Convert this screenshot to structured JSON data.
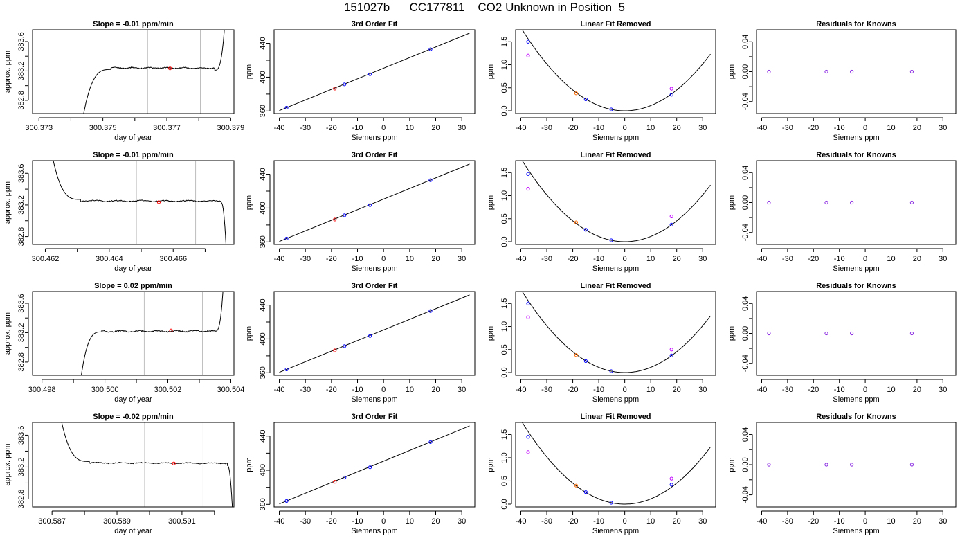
{
  "figure": {
    "title": "151027b      CC177811    CO2 Unknown in Position  5"
  },
  "colors": {
    "curve": "#000000",
    "axis": "#000000",
    "vline": "#bebebe",
    "known_point": "#0000ff",
    "unknown_point": "#ff0000",
    "magenta_point": "#c000ff",
    "orange_point": "#ff6a00",
    "residual_point": "#8a2be2"
  },
  "chart_data": [
    {
      "type": "line",
      "row": 0,
      "panel": "timeseries",
      "title": "Slope =  -0.01  ppm/min",
      "xlabel": "day of year",
      "ylabel": "approx. ppm",
      "xlim": [
        300.3728,
        300.3791
      ],
      "ylim": [
        382.62,
        383.76
      ],
      "xticks": [
        300.373,
        300.374,
        300.375,
        300.376,
        300.377,
        300.378,
        300.379
      ],
      "xtick_labels": [
        "300.373",
        "",
        "300.375",
        "",
        "300.377",
        "",
        "300.379"
      ],
      "yticks": [
        382.8,
        383.0,
        383.2,
        383.4,
        383.6
      ],
      "ytick_labels": [
        "382.8",
        "",
        "383.2",
        "",
        "383.6"
      ],
      "segments": [
        {
          "mode": "rise",
          "x0": 300.3744,
          "x1": 300.37525,
          "y0": 382.62,
          "y1": 383.22
        },
        {
          "mode": "plateau",
          "x0": 300.37525,
          "x1": 300.3785,
          "y": 383.24,
          "noise": 0.012,
          "slope": -0.01
        },
        {
          "mode": "spike",
          "x0": 300.3785,
          "x1": 300.3788,
          "y0": 383.21,
          "y1": 383.76
        }
      ],
      "vlines": [
        300.3764,
        300.37805
      ],
      "marker": {
        "x": 300.3771,
        "y": 383.235
      }
    },
    {
      "type": "line",
      "row": 0,
      "panel": "fit",
      "title": "3rd Order Fit",
      "xlabel": "Siemens ppm",
      "ylabel": "ppm",
      "xlim": [
        -42,
        35
      ],
      "ylim": [
        357,
        456
      ],
      "xticks": [
        -40,
        -30,
        -20,
        -10,
        0,
        10,
        20,
        30
      ],
      "yticks": [
        360,
        380,
        400,
        420,
        440
      ],
      "ytick_labels": [
        "360",
        "",
        "400",
        "",
        "440"
      ],
      "line": {
        "x": [
          -40,
          33
        ],
        "y": [
          360.5,
          452
        ]
      },
      "known_points": {
        "x": [
          -37.2,
          -15.0,
          -5.2,
          18.0
        ],
        "y": [
          364,
          391.5,
          403.5,
          433
        ]
      },
      "unknown_points": {
        "x": [
          -18.7
        ],
        "y": [
          386.5
        ]
      }
    },
    {
      "type": "line",
      "row": 0,
      "panel": "linfit",
      "title": "Linear Fit Removed",
      "xlabel": "Siemens ppm",
      "ylabel": "ppm",
      "xlim": [
        -42,
        35
      ],
      "ylim": [
        -0.06,
        1.76
      ],
      "xticks": [
        -40,
        -30,
        -20,
        -10,
        0,
        10,
        20,
        30
      ],
      "yticks": [
        0.0,
        0.5,
        1.0,
        1.5
      ],
      "ytick_labels": [
        "0.0",
        "0.5",
        "1.0",
        "1.5"
      ],
      "curve": {
        "x0": -40,
        "x1": 33,
        "a": 0.00113
      },
      "known_points": {
        "x": [
          -37.2,
          -15.0,
          -5.2,
          18.0
        ],
        "y": [
          1.5,
          0.25,
          0.03,
          0.35
        ]
      },
      "magenta_points": {
        "x": [
          -37.2,
          18.0
        ],
        "y": [
          1.2,
          0.48
        ]
      },
      "orange_points": {
        "x": [
          -18.7
        ],
        "y": [
          0.38
        ]
      }
    },
    {
      "type": "scatter",
      "row": 0,
      "panel": "residuals",
      "title": "Residuals for Knowns",
      "xlabel": "Siemens ppm",
      "ylabel": "ppm",
      "xlim": [
        -42,
        35
      ],
      "ylim": [
        -0.056,
        0.056
      ],
      "xticks": [
        -40,
        -30,
        -20,
        -10,
        0,
        10,
        20,
        30
      ],
      "yticks": [
        -0.04,
        -0.02,
        0.0,
        0.02,
        0.04
      ],
      "ytick_labels": [
        "-0.04",
        "",
        "0.00",
        "",
        "0.04"
      ],
      "points": {
        "x": [
          -37.2,
          -15.0,
          -5.2,
          18.0
        ],
        "y": [
          0,
          0,
          0,
          0
        ]
      }
    },
    {
      "type": "line",
      "row": 1,
      "panel": "timeseries",
      "title": "Slope =  -0.01  ppm/min",
      "xlabel": "day of year",
      "ylabel": "approx. ppm",
      "xlim": [
        300.4616,
        300.4679
      ],
      "ylim": [
        382.7,
        383.76
      ],
      "xticks": [
        300.462,
        300.463,
        300.464,
        300.465,
        300.466,
        300.467
      ],
      "xtick_labels": [
        "300.462",
        "",
        "300.464",
        "",
        "300.466",
        ""
      ],
      "yticks": [
        382.8,
        383.0,
        383.2,
        383.4,
        383.6
      ],
      "ytick_labels": [
        "382.8",
        "",
        "383.2",
        "",
        "383.6"
      ],
      "segments": [
        {
          "mode": "decay",
          "x0": 300.46225,
          "x1": 300.4631,
          "y0": 383.76,
          "y1": 383.27
        },
        {
          "mode": "plateau",
          "x0": 300.4631,
          "x1": 300.4675,
          "y": 383.25,
          "noise": 0.012,
          "slope": -0.01
        },
        {
          "mode": "drop",
          "x0": 300.4675,
          "x1": 300.46765,
          "y0": 383.23,
          "y1": 382.7
        }
      ],
      "vlines": [
        300.46485,
        300.4667
      ],
      "marker": {
        "x": 300.46555,
        "y": 383.235
      }
    },
    {
      "type": "line",
      "row": 1,
      "panel": "fit",
      "title": "3rd Order Fit",
      "xlabel": "Siemens ppm",
      "ylabel": "ppm",
      "xlim": [
        -42,
        35
      ],
      "ylim": [
        357,
        456
      ],
      "xticks": [
        -40,
        -30,
        -20,
        -10,
        0,
        10,
        20,
        30
      ],
      "yticks": [
        360,
        380,
        400,
        420,
        440
      ],
      "ytick_labels": [
        "360",
        "",
        "400",
        "",
        "440"
      ],
      "line": {
        "x": [
          -40,
          33
        ],
        "y": [
          360.5,
          452
        ]
      },
      "known_points": {
        "x": [
          -37.2,
          -15.0,
          -5.2,
          18.0
        ],
        "y": [
          364,
          391.5,
          403.5,
          433
        ]
      },
      "unknown_points": {
        "x": [
          -18.7
        ],
        "y": [
          386.5
        ]
      }
    },
    {
      "type": "line",
      "row": 1,
      "panel": "linfit",
      "title": "Linear Fit Removed",
      "xlabel": "Siemens ppm",
      "ylabel": "ppm",
      "xlim": [
        -42,
        35
      ],
      "ylim": [
        -0.06,
        1.76
      ],
      "xticks": [
        -40,
        -30,
        -20,
        -10,
        0,
        10,
        20,
        30
      ],
      "yticks": [
        0.0,
        0.5,
        1.0,
        1.5
      ],
      "ytick_labels": [
        "0.0",
        "0.5",
        "1.0",
        "1.5"
      ],
      "curve": {
        "x0": -40,
        "x1": 33,
        "a": 0.00113
      },
      "known_points": {
        "x": [
          -37.2,
          -15.0,
          -5.2,
          18.0
        ],
        "y": [
          1.47,
          0.26,
          0.03,
          0.37
        ]
      },
      "magenta_points": {
        "x": [
          -37.2,
          18.0
        ],
        "y": [
          1.15,
          0.55
        ]
      },
      "orange_points": {
        "x": [
          -18.7
        ],
        "y": [
          0.42
        ]
      }
    },
    {
      "type": "scatter",
      "row": 1,
      "panel": "residuals",
      "title": "Residuals for Knowns",
      "xlabel": "Siemens ppm",
      "ylabel": "ppm",
      "xlim": [
        -42,
        35
      ],
      "ylim": [
        -0.056,
        0.056
      ],
      "xticks": [
        -40,
        -30,
        -20,
        -10,
        0,
        10,
        20,
        30
      ],
      "yticks": [
        -0.04,
        -0.02,
        0.0,
        0.02,
        0.04
      ],
      "ytick_labels": [
        "-0.04",
        "",
        "0.00",
        "",
        "0.04"
      ],
      "points": {
        "x": [
          -37.2,
          -15.0,
          -5.2,
          18.0
        ],
        "y": [
          0,
          0,
          0,
          0
        ]
      }
    },
    {
      "type": "line",
      "row": 2,
      "panel": "timeseries",
      "title": "Slope =  0.02  ppm/min",
      "xlabel": "day of year",
      "ylabel": "approx. ppm",
      "xlim": [
        300.4977,
        300.5041
      ],
      "ylim": [
        382.62,
        383.76
      ],
      "xticks": [
        300.498,
        300.499,
        300.5,
        300.501,
        300.502,
        300.503,
        300.504
      ],
      "xtick_labels": [
        "300.498",
        "",
        "300.500",
        "",
        "300.502",
        "",
        "300.504"
      ],
      "yticks": [
        382.8,
        383.0,
        383.2,
        383.4,
        383.6
      ],
      "ytick_labels": [
        "382.8",
        "",
        "383.2",
        "",
        "383.6"
      ],
      "segments": [
        {
          "mode": "rise",
          "x0": 300.49925,
          "x1": 300.4999,
          "y0": 382.62,
          "y1": 383.21
        },
        {
          "mode": "plateau",
          "x0": 300.4999,
          "x1": 300.5035,
          "y": 383.22,
          "noise": 0.015,
          "slope": 0.02
        },
        {
          "mode": "spike",
          "x0": 300.5035,
          "x1": 300.50375,
          "y0": 383.22,
          "y1": 383.76
        }
      ],
      "vlines": [
        300.50125,
        300.5031
      ],
      "marker": {
        "x": 300.5021,
        "y": 383.23
      }
    },
    {
      "type": "line",
      "row": 2,
      "panel": "fit",
      "title": "3rd Order Fit",
      "xlabel": "Siemens ppm",
      "ylabel": "ppm",
      "xlim": [
        -42,
        35
      ],
      "ylim": [
        357,
        456
      ],
      "xticks": [
        -40,
        -30,
        -20,
        -10,
        0,
        10,
        20,
        30
      ],
      "yticks": [
        360,
        380,
        400,
        420,
        440
      ],
      "ytick_labels": [
        "360",
        "",
        "400",
        "",
        "440"
      ],
      "line": {
        "x": [
          -40,
          33
        ],
        "y": [
          360.5,
          452
        ]
      },
      "known_points": {
        "x": [
          -37.2,
          -15.0,
          -5.2,
          18.0
        ],
        "y": [
          364,
          391.5,
          403.5,
          433
        ]
      },
      "unknown_points": {
        "x": [
          -18.7
        ],
        "y": [
          386.5
        ]
      }
    },
    {
      "type": "line",
      "row": 2,
      "panel": "linfit",
      "title": "Linear Fit Removed",
      "xlabel": "Siemens ppm",
      "ylabel": "ppm",
      "xlim": [
        -42,
        35
      ],
      "ylim": [
        -0.06,
        1.76
      ],
      "xticks": [
        -40,
        -30,
        -20,
        -10,
        0,
        10,
        20,
        30
      ],
      "yticks": [
        0.0,
        0.5,
        1.0,
        1.5
      ],
      "ytick_labels": [
        "0.0",
        "0.5",
        "1.0",
        "1.5"
      ],
      "curve": {
        "x0": -40,
        "x1": 33,
        "a": 0.00113
      },
      "known_points": {
        "x": [
          -37.2,
          -15.0,
          -5.2,
          18.0
        ],
        "y": [
          1.5,
          0.25,
          0.03,
          0.37
        ]
      },
      "magenta_points": {
        "x": [
          -37.2,
          18.0
        ],
        "y": [
          1.2,
          0.5
        ]
      },
      "orange_points": {
        "x": [
          -18.7
        ],
        "y": [
          0.38
        ]
      }
    },
    {
      "type": "scatter",
      "row": 2,
      "panel": "residuals",
      "title": "Residuals for Knowns",
      "xlabel": "Siemens ppm",
      "ylabel": "ppm",
      "xlim": [
        -42,
        35
      ],
      "ylim": [
        -0.056,
        0.056
      ],
      "xticks": [
        -40,
        -30,
        -20,
        -10,
        0,
        10,
        20,
        30
      ],
      "yticks": [
        -0.04,
        -0.02,
        0.0,
        0.02,
        0.04
      ],
      "ytick_labels": [
        "-0.04",
        "",
        "0.00",
        "",
        "0.04"
      ],
      "points": {
        "x": [
          -37.2,
          -15.0,
          -5.2,
          18.0
        ],
        "y": [
          0,
          0,
          0,
          0
        ]
      }
    },
    {
      "type": "line",
      "row": 3,
      "panel": "timeseries",
      "title": "Slope =  -0.02  ppm/min",
      "xlabel": "day of year",
      "ylabel": "approx. ppm",
      "xlim": [
        300.5864,
        300.5926
      ],
      "ylim": [
        382.7,
        383.76
      ],
      "xticks": [
        300.587,
        300.588,
        300.589,
        300.59,
        300.591,
        300.592
      ],
      "xtick_labels": [
        "300.587",
        "",
        "300.589",
        "",
        "300.591",
        ""
      ],
      "yticks": [
        382.8,
        383.0,
        383.2,
        383.4,
        383.6
      ],
      "ytick_labels": [
        "382.8",
        "",
        "383.2",
        "",
        "383.6"
      ],
      "segments": [
        {
          "mode": "decay",
          "x0": 300.5873,
          "x1": 300.58815,
          "y0": 383.76,
          "y1": 383.27
        },
        {
          "mode": "plateau",
          "x0": 300.58815,
          "x1": 300.5924,
          "y": 383.25,
          "noise": 0.01,
          "slope": -0.02
        },
        {
          "mode": "drop",
          "x0": 300.5924,
          "x1": 300.59255,
          "y0": 383.22,
          "y1": 382.7
        }
      ],
      "vlines": [
        300.58985,
        300.59165
      ],
      "marker": {
        "x": 300.59075,
        "y": 383.245
      }
    },
    {
      "type": "line",
      "row": 3,
      "panel": "fit",
      "title": "3rd Order Fit",
      "xlabel": "Siemens ppm",
      "ylabel": "ppm",
      "xlim": [
        -42,
        35
      ],
      "ylim": [
        357,
        456
      ],
      "xticks": [
        -40,
        -30,
        -20,
        -10,
        0,
        10,
        20,
        30
      ],
      "yticks": [
        360,
        380,
        400,
        420,
        440
      ],
      "ytick_labels": [
        "360",
        "",
        "400",
        "",
        "440"
      ],
      "line": {
        "x": [
          -40,
          33
        ],
        "y": [
          360.5,
          452
        ]
      },
      "known_points": {
        "x": [
          -37.2,
          -15.0,
          -5.2,
          18.0
        ],
        "y": [
          364,
          391.5,
          403.5,
          433
        ]
      },
      "unknown_points": {
        "x": [
          -18.7
        ],
        "y": [
          386.5
        ]
      }
    },
    {
      "type": "line",
      "row": 3,
      "panel": "linfit",
      "title": "Linear Fit Removed",
      "xlabel": "Siemens ppm",
      "ylabel": "ppm",
      "xlim": [
        -42,
        35
      ],
      "ylim": [
        -0.06,
        1.76
      ],
      "xticks": [
        -40,
        -30,
        -20,
        -10,
        0,
        10,
        20,
        30
      ],
      "yticks": [
        0.0,
        0.5,
        1.0,
        1.5
      ],
      "ytick_labels": [
        "0.0",
        "0.5",
        "1.0",
        "1.5"
      ],
      "curve": {
        "x0": -40,
        "x1": 33,
        "a": 0.00113
      },
      "known_points": {
        "x": [
          -37.2,
          -15.0,
          -5.2,
          18.0
        ],
        "y": [
          1.45,
          0.26,
          0.03,
          0.42
        ]
      },
      "magenta_points": {
        "x": [
          -37.2,
          18.0
        ],
        "y": [
          1.12,
          0.55
        ]
      },
      "orange_points": {
        "x": [
          -18.7
        ],
        "y": [
          0.4
        ]
      }
    },
    {
      "type": "scatter",
      "row": 3,
      "panel": "residuals",
      "title": "Residuals for Knowns",
      "xlabel": "Siemens ppm",
      "ylabel": "ppm",
      "xlim": [
        -42,
        35
      ],
      "ylim": [
        -0.056,
        0.056
      ],
      "xticks": [
        -40,
        -30,
        -20,
        -10,
        0,
        10,
        20,
        30
      ],
      "yticks": [
        -0.04,
        -0.02,
        0.0,
        0.02,
        0.04
      ],
      "ytick_labels": [
        "-0.04",
        "",
        "0.00",
        "",
        "0.04"
      ],
      "points": {
        "x": [
          -37.2,
          -15.0,
          -5.2,
          18.0
        ],
        "y": [
          0,
          0,
          0,
          0
        ]
      }
    }
  ]
}
